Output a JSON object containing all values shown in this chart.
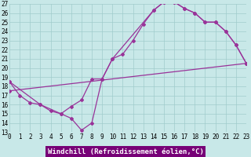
{
  "bg_color": "#c8e8e8",
  "grid_color": "#a0cccc",
  "line_color": "#993399",
  "xlabel": "Windchill (Refroidissement éolien,°C)",
  "xlabel_bg": "#770077",
  "xmin": 0,
  "xmax": 23,
  "ymin": 13,
  "ymax": 27,
  "curve1_x": [
    0,
    1,
    2,
    3,
    4,
    5,
    6,
    7,
    8,
    9,
    10,
    11,
    12,
    13,
    14,
    15,
    16,
    17,
    18,
    19,
    20,
    21,
    22,
    23
  ],
  "curve1_y": [
    18.5,
    17.0,
    16.2,
    16.0,
    15.3,
    15.0,
    14.5,
    13.2,
    14.0,
    18.8,
    21.0,
    21.5,
    23.0,
    24.8,
    26.3,
    27.2,
    27.2,
    26.5,
    26.0,
    25.0,
    25.0,
    24.0,
    22.5,
    20.5
  ],
  "curve2_x": [
    0,
    3,
    5,
    6,
    7,
    8,
    9,
    10,
    14,
    15,
    16,
    17,
    18,
    19,
    20,
    21,
    22,
    23
  ],
  "curve2_y": [
    18.5,
    16.0,
    15.0,
    15.8,
    16.5,
    18.8,
    18.8,
    21.0,
    26.3,
    27.2,
    27.2,
    26.5,
    26.0,
    25.0,
    25.0,
    24.0,
    22.5,
    20.5
  ],
  "curve3_x": [
    0,
    23
  ],
  "curve3_y": [
    17.5,
    20.5
  ],
  "tick_fontsize": 5.5,
  "xlabel_fontsize": 6.5,
  "lw": 0.9,
  "marker_size": 2.0
}
